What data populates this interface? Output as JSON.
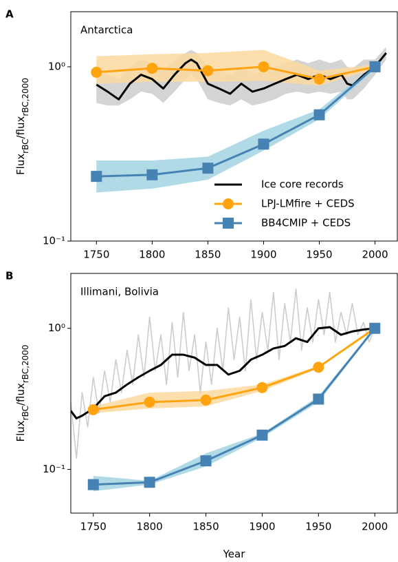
{
  "chart_data": [
    {
      "type": "line",
      "panel_label": "A",
      "title": "Antarctica",
      "yscale": "log",
      "legend": "lower right",
      "ylabel": {
        "main": "Flux",
        "sub": "rBC",
        "main2": "/flux",
        "sub2": "rBC,2000"
      },
      "xlim": [
        1727,
        2020
      ],
      "xticks": [
        1750,
        1800,
        1850,
        1900,
        1950,
        2000
      ],
      "ylim": [
        0.1,
        2.07
      ],
      "yticks": [
        {
          "value": 0.1,
          "label": "10⁻¹"
        },
        {
          "value": 1,
          "label": "10⁰"
        }
      ],
      "series": [
        {
          "name": "Ice core records",
          "color": "#000000",
          "band_color": "#cccccc",
          "x": [
            1750,
            1760,
            1770,
            1780,
            1790,
            1800,
            1810,
            1820,
            1830,
            1835,
            1840,
            1850,
            1860,
            1870,
            1880,
            1890,
            1900,
            1910,
            1920,
            1930,
            1940,
            1950,
            1960,
            1970,
            1975,
            1980,
            1990,
            2000,
            2010
          ],
          "values": [
            0.79,
            0.72,
            0.65,
            0.8,
            0.9,
            0.85,
            0.75,
            0.9,
            1.05,
            1.1,
            1.05,
            0.8,
            0.75,
            0.7,
            0.8,
            0.72,
            0.75,
            0.8,
            0.85,
            0.9,
            0.85,
            0.9,
            0.85,
            0.9,
            0.8,
            0.78,
            0.9,
            1.0,
            1.2
          ],
          "lower": [
            0.62,
            0.6,
            0.6,
            0.65,
            0.72,
            0.7,
            0.62,
            0.72,
            0.85,
            0.9,
            0.85,
            0.65,
            0.62,
            0.6,
            0.65,
            0.6,
            0.62,
            0.65,
            0.7,
            0.72,
            0.7,
            0.72,
            0.7,
            0.72,
            0.65,
            0.65,
            0.75,
            0.9,
            1.1
          ],
          "upper": [
            1.0,
            0.9,
            0.85,
            1.0,
            1.1,
            1.05,
            0.95,
            1.1,
            1.2,
            1.25,
            1.2,
            1.0,
            0.95,
            0.9,
            1.0,
            0.92,
            0.95,
            1.0,
            1.05,
            1.1,
            1.05,
            1.1,
            1.05,
            1.1,
            1.0,
            0.98,
            1.1,
            1.1,
            1.3
          ]
        },
        {
          "name": "LPJ-LMfire + CEDS",
          "color": "#ffa30f",
          "band_color": "#fdd9a0",
          "marker": "circle",
          "x": [
            1750,
            1800,
            1850,
            1900,
            1950,
            2000
          ],
          "values": [
            0.93,
            0.98,
            0.95,
            1.0,
            0.85,
            1.0
          ],
          "lower": [
            0.8,
            0.82,
            0.82,
            0.83,
            0.78,
            0.97
          ],
          "upper": [
            1.15,
            1.18,
            1.2,
            1.25,
            0.95,
            1.03
          ]
        },
        {
          "name": "BB4CMIP + CEDS",
          "color": "#4682b4",
          "band_color": "#a3d3e3",
          "marker": "square",
          "x": [
            1750,
            1800,
            1850,
            1900,
            1950,
            2000
          ],
          "values": [
            0.235,
            0.24,
            0.262,
            0.36,
            0.53,
            1.0
          ],
          "lower": [
            0.19,
            0.2,
            0.225,
            0.33,
            0.5,
            0.97
          ],
          "upper": [
            0.29,
            0.29,
            0.305,
            0.43,
            0.57,
            1.03
          ]
        }
      ]
    },
    {
      "type": "line",
      "panel_label": "B",
      "title": "Illimani, Bolivia",
      "yscale": "log",
      "xlabel": "Year",
      "ylabel": {
        "main": "Flux",
        "sub": "rBC",
        "main2": "/flux",
        "sub2": "rBC,2000"
      },
      "xlim": [
        1730,
        2020
      ],
      "xticks": [
        1750,
        1800,
        1850,
        1900,
        1950,
        2000
      ],
      "ylim": [
        0.049,
        2.45
      ],
      "yticks": [
        {
          "value": 0.1,
          "label": "10⁻¹"
        },
        {
          "value": 1,
          "label": "10⁰"
        }
      ],
      "series": [
        {
          "color": "#cccccc",
          "x": [
            1730,
            1735,
            1740,
            1745,
            1750,
            1755,
            1760,
            1765,
            1770,
            1775,
            1780,
            1785,
            1790,
            1795,
            1800,
            1805,
            1810,
            1815,
            1820,
            1825,
            1830,
            1835,
            1840,
            1845,
            1850,
            1855,
            1860,
            1865,
            1870,
            1875,
            1880,
            1885,
            1890,
            1895,
            1900,
            1905,
            1910,
            1915,
            1920,
            1925,
            1930,
            1935,
            1940,
            1945,
            1950,
            1955,
            1960,
            1965,
            1970,
            1975,
            1980,
            1985,
            1990,
            1995,
            2000
          ],
          "values": [
            0.3,
            0.12,
            0.35,
            0.2,
            0.45,
            0.25,
            0.5,
            0.3,
            0.6,
            0.35,
            0.7,
            0.4,
            0.9,
            0.45,
            1.2,
            0.5,
            0.9,
            0.4,
            1.1,
            0.45,
            1.3,
            0.5,
            0.9,
            0.35,
            0.8,
            0.4,
            1.0,
            0.5,
            1.4,
            0.6,
            1.2,
            0.5,
            1.6,
            0.6,
            1.3,
            0.7,
            1.8,
            0.6,
            1.5,
            0.8,
            1.9,
            0.7,
            1.4,
            0.8,
            1.6,
            0.9,
            1.8,
            0.8,
            1.3,
            0.9,
            1.5,
            0.9,
            1.1,
            0.8,
            1.0
          ]
        },
        {
          "color": "#000000",
          "x": [
            1730,
            1735,
            1740,
            1750,
            1760,
            1770,
            1780,
            1790,
            1800,
            1810,
            1820,
            1830,
            1840,
            1850,
            1860,
            1870,
            1880,
            1890,
            1900,
            1910,
            1920,
            1930,
            1940,
            1950,
            1960,
            1970,
            1980,
            1990,
            2000
          ],
          "values": [
            0.26,
            0.23,
            0.24,
            0.27,
            0.33,
            0.35,
            0.4,
            0.45,
            0.5,
            0.55,
            0.65,
            0.65,
            0.62,
            0.55,
            0.55,
            0.47,
            0.5,
            0.6,
            0.65,
            0.72,
            0.75,
            0.85,
            0.8,
            1.0,
            1.02,
            0.9,
            0.95,
            0.98,
            1.0
          ]
        },
        {
          "color": "#ffa30f",
          "band_color": "#fdd9a0",
          "marker": "circle",
          "x": [
            1750,
            1800,
            1850,
            1900,
            1950,
            2000
          ],
          "values": [
            0.265,
            0.3,
            0.31,
            0.38,
            0.53,
            1.0
          ],
          "lower": [
            0.25,
            0.27,
            0.28,
            0.36,
            0.52,
            0.98
          ],
          "upper": [
            0.28,
            0.35,
            0.36,
            0.4,
            0.54,
            1.02
          ]
        },
        {
          "color": "#4682b4",
          "band_color": "#a3d3e3",
          "marker": "square",
          "x": [
            1750,
            1800,
            1850,
            1900,
            1950,
            2000
          ],
          "values": [
            0.078,
            0.081,
            0.115,
            0.175,
            0.315,
            1.0
          ],
          "lower": [
            0.07,
            0.078,
            0.105,
            0.168,
            0.3,
            0.98
          ],
          "upper": [
            0.09,
            0.083,
            0.13,
            0.18,
            0.33,
            1.02
          ]
        }
      ]
    }
  ]
}
